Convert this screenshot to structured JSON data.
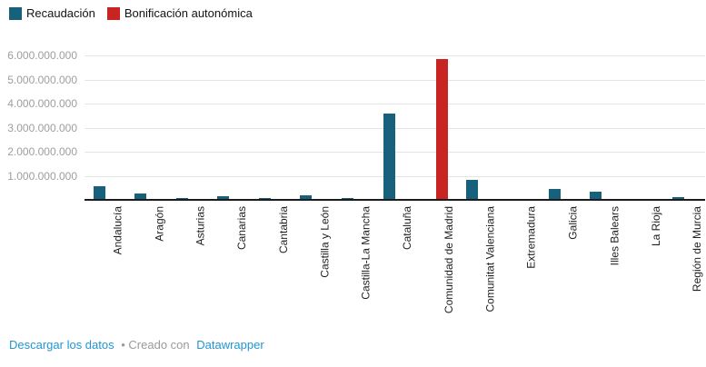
{
  "legend": {
    "series": [
      {
        "label": "Recaudación",
        "color": "#17617c"
      },
      {
        "label": "Bonificación autonómica",
        "color": "#c72422"
      }
    ]
  },
  "chart_data": {
    "type": "bar",
    "grouped": true,
    "title": "",
    "xlabel": "",
    "ylabel": "",
    "legend_position": "top-left",
    "grid": "horizontal",
    "categories": [
      "Andalucía",
      "Aragón",
      "Asturias",
      "Canarias",
      "Cantabria",
      "Castilla y León",
      "Castilla-La Mancha",
      "Cataluña",
      "Comunidad de Madrid",
      "Comunitat Valenciana",
      "Extremadura",
      "Galicia",
      "Illes Balears",
      "La Rioja",
      "Región de Murcia"
    ],
    "series": [
      {
        "name": "Recaudación",
        "color": "#17617c",
        "values": [
          580000000,
          250000000,
          90000000,
          150000000,
          80000000,
          190000000,
          60000000,
          3590000000,
          0,
          820000000,
          20000000,
          460000000,
          340000000,
          40000000,
          110000000
        ]
      },
      {
        "name": "Bonificación autonómica",
        "color": "#c72422",
        "values": [
          0,
          0,
          0,
          0,
          0,
          0,
          0,
          0,
          5850000000,
          55000000,
          0,
          0,
          0,
          0,
          0
        ]
      }
    ],
    "y_ticks": [
      1000000000,
      2000000000,
      3000000000,
      4000000000,
      5000000000,
      6000000000
    ],
    "y_tick_labels": [
      "1.000.000.000",
      "2.000.000.000",
      "3.000.000.000",
      "4.000.000.000",
      "5.000.000.000",
      "6.000.000.000"
    ],
    "ylim": [
      0,
      6620000000
    ]
  },
  "footer": {
    "download_label": "Descargar los datos",
    "created_with": "• Creado con",
    "tool_name": "Datawrapper",
    "link_color": "#2196d2"
  }
}
